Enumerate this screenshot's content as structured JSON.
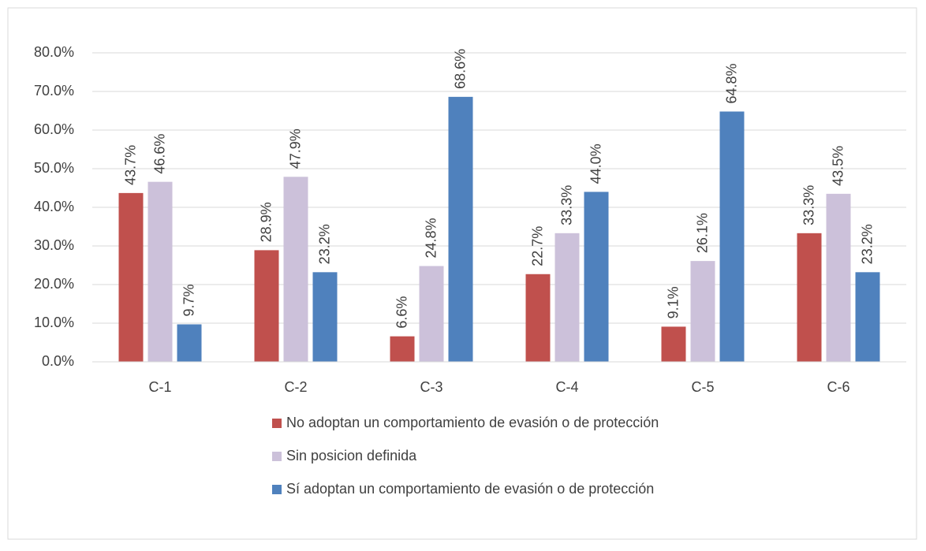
{
  "chart_data": {
    "type": "bar",
    "categories": [
      "C-1",
      "C-2",
      "C-3",
      "C-4",
      "C-5",
      "C-6"
    ],
    "series": [
      {
        "name": "No adoptan un comportamiento de evasión o de protección",
        "color": "#c0504d",
        "values": [
          43.7,
          28.9,
          6.6,
          22.7,
          9.1,
          33.3
        ],
        "value_labels": [
          "43.7%",
          "28.9%",
          "6.6%",
          "22.7%",
          "9.1%",
          "33.3%"
        ]
      },
      {
        "name": "Sin posicion definida",
        "color": "#ccc1da",
        "values": [
          46.6,
          47.9,
          24.8,
          33.3,
          26.1,
          43.5
        ],
        "value_labels": [
          "46.6%",
          "47.9%",
          "24.8%",
          "33.3%",
          "26.1%",
          "43.5%"
        ]
      },
      {
        "name": "Sí adoptan un comportamiento de evasión o de protección",
        "color": "#4f81bd",
        "values": [
          9.7,
          23.2,
          68.6,
          44.0,
          64.8,
          23.2
        ],
        "value_labels": [
          "9.7%",
          "23.2%",
          "68.6%",
          "44.0%",
          "64.8%",
          "23.2%"
        ]
      }
    ],
    "ylim": [
      0,
      80
    ],
    "yticks": [
      {
        "value": 0,
        "label": "0.0%"
      },
      {
        "value": 10,
        "label": "10.0%"
      },
      {
        "value": 20,
        "label": "20.0%"
      },
      {
        "value": 30,
        "label": "30.0%"
      },
      {
        "value": 40,
        "label": "40.0%"
      },
      {
        "value": 50,
        "label": "50.0%"
      },
      {
        "value": 60,
        "label": "60.0%"
      },
      {
        "value": 70,
        "label": "70.0%"
      },
      {
        "value": 80,
        "label": "80.0%"
      }
    ],
    "grid": true,
    "legend": "bottom"
  }
}
